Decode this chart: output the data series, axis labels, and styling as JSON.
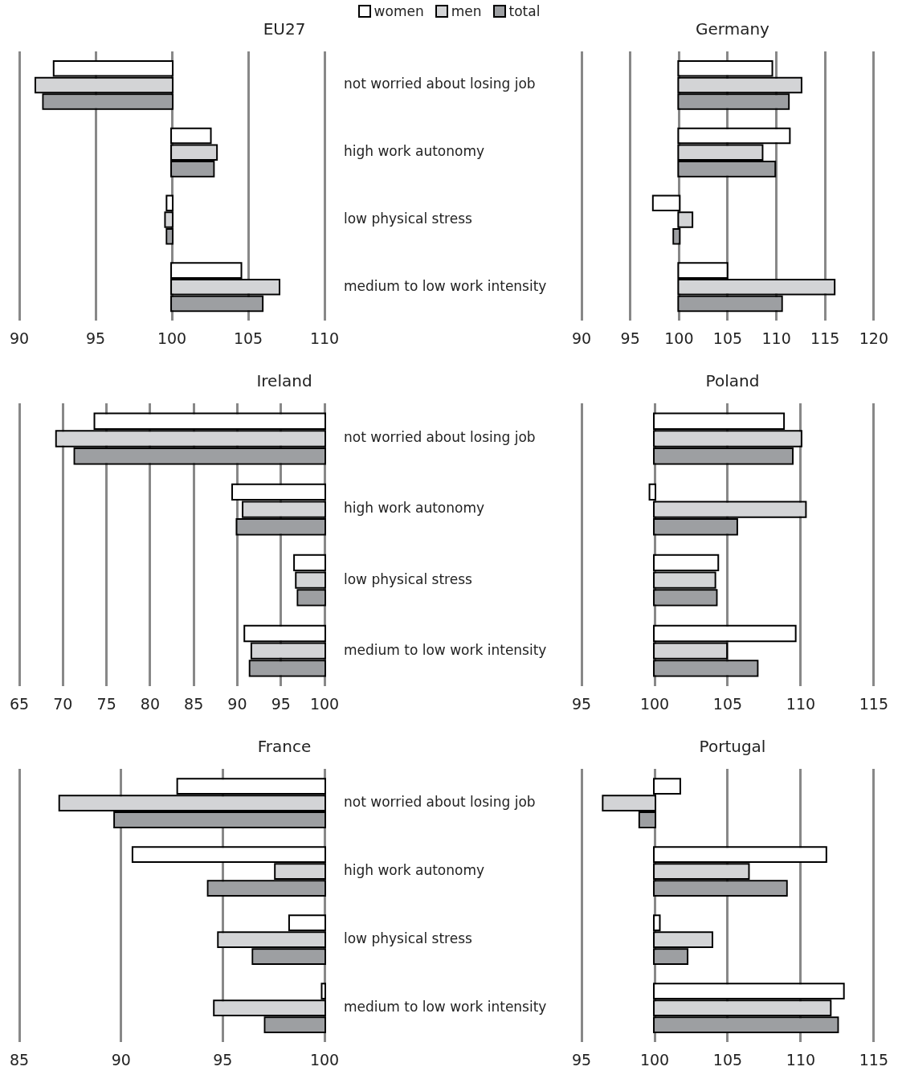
{
  "chart_data": [
    {
      "type": "bar",
      "orientation": "horizontal",
      "title": "EU27",
      "categories": [
        "not worried about losing job",
        "high work autonomy",
        "low physical stress",
        "medium to low work intensity"
      ],
      "legend": "top",
      "grid": "x",
      "xlim": [
        90,
        110
      ],
      "xticks": [
        90,
        95,
        100,
        105,
        110
      ],
      "series": [
        {
          "name": "women",
          "color": "#ffffff",
          "base": [
            100,
            100,
            100,
            100
          ],
          "values": [
            -7.7,
            2.5,
            -0.3,
            4.5
          ]
        },
        {
          "name": "men",
          "color": "#d3d4d6",
          "base": [
            100,
            100,
            100,
            100
          ],
          "values": [
            -8.9,
            2.9,
            -0.4,
            7.0
          ]
        },
        {
          "name": "total",
          "color": "#9d9fa2",
          "base": [
            100,
            100,
            100,
            100
          ],
          "values": [
            -8.4,
            2.7,
            -0.3,
            5.9
          ]
        }
      ]
    },
    {
      "type": "bar",
      "orientation": "horizontal",
      "title": "Germany",
      "categories": [
        null,
        null,
        null,
        null
      ],
      "tick_labels": "x",
      "grid": "x",
      "xlim": [
        90,
        120
      ],
      "xticks": [
        90,
        95,
        100,
        105,
        110,
        115,
        120
      ],
      "series": [
        {
          "color": "#ffffff",
          "base": [
            100,
            100,
            100,
            100
          ],
          "values": [
            9.5,
            11.3,
            -2.6,
            4.9
          ]
        },
        {
          "color": "#d3d4d6",
          "base": [
            100,
            100,
            100,
            100
          ],
          "values": [
            12.5,
            8.5,
            1.3,
            15.9
          ]
        },
        {
          "color": "#9d9fa2",
          "base": [
            100,
            100,
            100,
            100
          ],
          "values": [
            11.2,
            9.8,
            -0.5,
            10.5
          ]
        }
      ]
    },
    {
      "type": "bar",
      "orientation": "horizontal",
      "title": "Ireland",
      "categories": [
        "not worried about losing job",
        "high work autonomy",
        "low physical stress",
        "medium to low work intensity"
      ],
      "grid": "x",
      "xlim": [
        65,
        100
      ],
      "xticks": [
        65,
        70,
        75,
        80,
        85,
        90,
        95,
        100
      ],
      "series": [
        {
          "color": "#ffffff",
          "base": [
            100,
            100,
            100,
            100
          ],
          "values": [
            -26.3,
            -10.5,
            -3.4,
            -9.1
          ]
        },
        {
          "color": "#d3d4d6",
          "base": [
            100,
            100,
            100,
            100
          ],
          "values": [
            -30.7,
            -9.3,
            -3.2,
            -8.3
          ]
        },
        {
          "color": "#9d9fa2",
          "base": [
            100,
            100,
            100,
            100
          ],
          "values": [
            -28.6,
            -10.0,
            -3.0,
            -8.5
          ]
        }
      ]
    },
    {
      "type": "bar",
      "orientation": "horizontal",
      "title": "Poland",
      "categories": [
        null,
        null,
        null,
        null
      ],
      "tick_labels": "x",
      "grid": "x",
      "xlim": [
        95,
        115
      ],
      "xticks": [
        95,
        100,
        105,
        110,
        115
      ],
      "series": [
        {
          "color": "#ffffff",
          "base": [
            100,
            100,
            100,
            100
          ],
          "values": [
            8.8,
            -0.3,
            4.3,
            9.6
          ]
        },
        {
          "color": "#d3d4d6",
          "base": [
            100,
            100,
            100,
            100
          ],
          "values": [
            10.0,
            10.3,
            4.1,
            4.9
          ]
        },
        {
          "color": "#9d9fa2",
          "base": [
            100,
            100,
            100,
            100
          ],
          "values": [
            9.4,
            5.6,
            4.2,
            7.0
          ]
        }
      ]
    },
    {
      "type": "bar",
      "orientation": "horizontal",
      "title": "France",
      "categories": [
        "not worried about losing job",
        "high work autonomy",
        "low physical stress",
        "medium to low work intensity"
      ],
      "grid": "x",
      "xlim": [
        85,
        100
      ],
      "xticks": [
        85,
        90,
        95,
        100
      ],
      "series": [
        {
          "color": "#ffffff",
          "base": [
            100,
            100,
            100,
            100
          ],
          "values": [
            -7.2,
            -9.4,
            -1.7,
            -0.1
          ]
        },
        {
          "color": "#d3d4d6",
          "base": [
            100,
            100,
            100,
            100
          ],
          "values": [
            -13.0,
            -2.4,
            -5.2,
            -5.4
          ]
        },
        {
          "color": "#9d9fa2",
          "base": [
            100,
            100,
            100,
            100
          ],
          "values": [
            -10.3,
            -5.7,
            -3.5,
            -2.9
          ]
        }
      ]
    },
    {
      "type": "bar",
      "orientation": "horizontal",
      "title": "Portugal",
      "categories": [
        null,
        null,
        null,
        null
      ],
      "tick_labels": "x",
      "grid": "x",
      "xlim": [
        95,
        115
      ],
      "xticks": [
        95,
        100,
        105,
        110,
        115
      ],
      "series": [
        {
          "color": "#ffffff",
          "base": [
            100,
            100,
            100,
            100
          ],
          "values": [
            1.7,
            11.7,
            0.3,
            12.9
          ]
        },
        {
          "color": "#d3d4d6",
          "base": [
            100,
            100,
            100,
            100
          ],
          "values": [
            -3.5,
            6.4,
            3.9,
            12.0
          ]
        },
        {
          "color": "#9d9fa2",
          "base": [
            100,
            100,
            100,
            100
          ],
          "values": [
            -1.0,
            9.0,
            2.2,
            12.5
          ]
        }
      ]
    }
  ]
}
